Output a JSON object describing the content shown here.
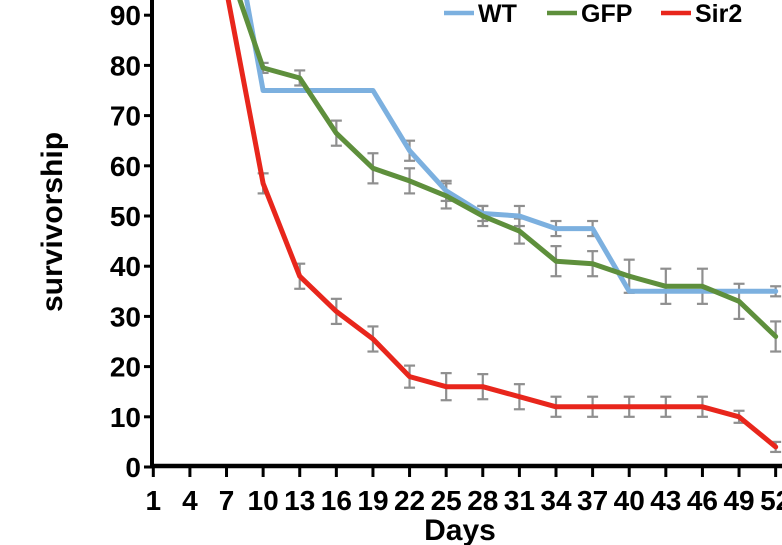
{
  "chart_data": {
    "type": "line",
    "title": "",
    "xlabel": "Days",
    "ylabel": "survivorship",
    "x_ticks": [
      1,
      4,
      7,
      10,
      13,
      16,
      19,
      22,
      25,
      28,
      31,
      34,
      37,
      40,
      43,
      46,
      49,
      52
    ],
    "y_ticks": [
      0,
      10,
      20,
      30,
      40,
      50,
      60,
      70,
      80,
      90
    ],
    "x_range": [
      1,
      52
    ],
    "y_range_visible": [
      0,
      93
    ],
    "grid": false,
    "legend_position": "top-right",
    "days": [
      10,
      13,
      16,
      19,
      22,
      25,
      28,
      31,
      34,
      37,
      40,
      43,
      46,
      49,
      52
    ],
    "series": [
      {
        "name": "WT",
        "color": "#7CB0DF",
        "entry_at_top": {
          "day": 8.65,
          "value": 93
        },
        "values": [
          75,
          75,
          75,
          75,
          63,
          55,
          50.5,
          50,
          47.5,
          47.5,
          35,
          35,
          35,
          35,
          35
        ],
        "errors": {
          "22": 2,
          "25": 2,
          "28": 1.5,
          "31": 2,
          "34": 1.5,
          "37": 1.5,
          "52": 1
        }
      },
      {
        "name": "GFP",
        "color": "#5E8F3C",
        "entry_at_top": {
          "day": 8.1,
          "value": 93
        },
        "values": [
          79.5,
          77.5,
          66.5,
          59.5,
          57,
          54,
          50,
          47,
          41,
          40.5,
          38,
          36,
          36,
          33,
          26
        ],
        "errors": {
          "10": 1,
          "13": 1.5,
          "16": 2.5,
          "19": 3,
          "22": 2.5,
          "25": 2.5,
          "28": 2,
          "31": 2.5,
          "34": 3,
          "37": 2.5,
          "40": 3.3,
          "43": 3.5,
          "46": 3.5,
          "49": 3.5,
          "52": 3
        }
      },
      {
        "name": "Sir2",
        "color": "#E8261C",
        "entry_at_top": {
          "day": 7.15,
          "value": 93
        },
        "values": [
          56.5,
          38,
          31,
          25.5,
          18,
          16,
          16,
          14,
          12,
          12,
          12,
          12,
          12,
          10,
          4
        ],
        "errors": {
          "10": 2,
          "13": 2.5,
          "16": 2.5,
          "19": 2.5,
          "22": 2.2,
          "25": 2.7,
          "28": 2.5,
          "31": 2.5,
          "34": 2,
          "37": 2,
          "40": 2,
          "43": 2,
          "46": 2,
          "49": 1.2,
          "52": 1
        }
      }
    ],
    "colors": {
      "axis": "#000000",
      "error_bar": "#8F8F8F",
      "background": "#FFFFFF"
    }
  }
}
